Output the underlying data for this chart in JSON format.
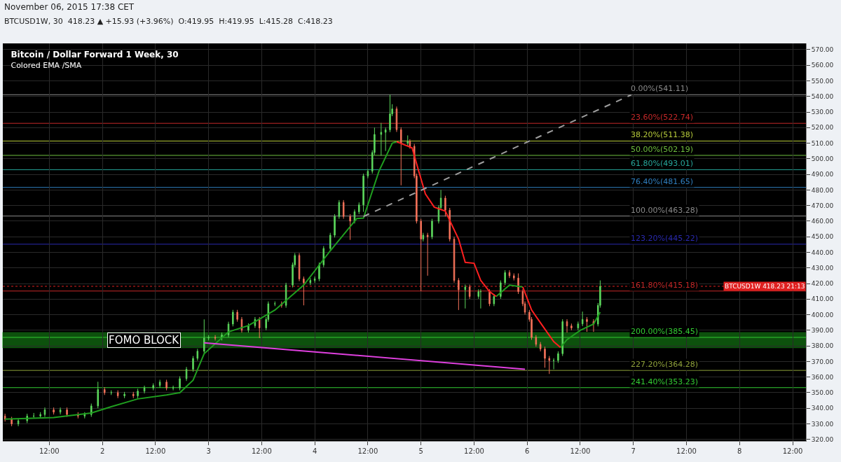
{
  "chart_data": {
    "type": "candlestick",
    "title": "Bitcoin / Dollar Forward 1 Week, 30",
    "subtitle": "Colored EMA /SMA",
    "annotations": [
      "November 06, 2015 17:38 CET",
      "BTCUSD1W, 30  418.23 ▲ +15.93 (+3.96%)  O:419.95  H:419.95  L:415.28  C:418.23"
    ],
    "x": [
      "2015-11-01T02:00",
      "2015-11-01T03:30",
      "2015-11-01T05:00",
      "2015-11-01T07:00",
      "2015-11-01T08:30",
      "2015-11-01T10:00",
      "2015-11-01T11:00",
      "2015-11-01T13:00",
      "2015-11-01T14:30",
      "2015-11-01T16:00",
      "2015-11-01T18:30",
      "2015-11-01T20:00",
      "2015-11-01T21:30",
      "2015-11-01T23:00",
      "2015-11-02T00:30",
      "2015-11-02T02:00",
      "2015-11-02T03:30",
      "2015-11-02T05:00",
      "2015-11-02T07:00",
      "2015-11-02T08:00",
      "2015-11-02T09:30",
      "2015-11-02T11:30",
      "2015-11-02T13:00",
      "2015-11-02T14:30",
      "2015-11-02T16:00",
      "2015-11-02T17:30",
      "2015-11-02T19:00",
      "2015-11-02T20:30",
      "2015-11-02T21:30",
      "2015-11-02T23:00",
      "2015-11-03T00:00",
      "2015-11-03T01:30",
      "2015-11-03T03:00",
      "2015-11-03T04:30",
      "2015-11-03T05:30",
      "2015-11-03T06:30",
      "2015-11-03T07:30",
      "2015-11-03T09:00",
      "2015-11-03T10:30",
      "2015-11-03T11:30",
      "2015-11-03T13:00",
      "2015-11-03T13:30",
      "2015-11-03T15:00",
      "2015-11-03T16:30",
      "2015-11-03T17:30",
      "2015-11-03T19:00",
      "2015-11-03T19:30",
      "2015-11-03T20:30",
      "2015-11-03T21:30",
      "2015-11-03T23:00",
      "2015-11-04T00:00",
      "2015-11-04T01:00",
      "2015-11-04T02:00",
      "2015-11-04T03:30",
      "2015-11-04T04:30",
      "2015-11-04T05:30",
      "2015-11-04T06:30",
      "2015-11-04T08:00",
      "2015-11-04T09:00",
      "2015-11-04T10:00",
      "2015-11-04T11:00",
      "2015-11-04T12:00",
      "2015-11-04T13:00",
      "2015-11-04T13:30",
      "2015-11-04T15:00",
      "2015-11-04T16:00",
      "2015-11-04T17:00",
      "2015-11-04T17:30",
      "2015-11-04T18:30",
      "2015-11-04T19:30",
      "2015-11-04T21:00",
      "2015-11-04T21:30",
      "2015-11-04T22:30",
      "2015-11-04T23:00",
      "2015-11-05T00:00",
      "2015-11-05T00:30",
      "2015-11-05T01:30",
      "2015-11-05T02:30",
      "2015-11-05T04:00",
      "2015-11-05T04:30",
      "2015-11-05T05:30",
      "2015-11-05T06:30",
      "2015-11-05T07:30",
      "2015-11-05T08:30",
      "2015-11-05T10:00",
      "2015-11-05T11:00",
      "2015-11-05T13:00",
      "2015-11-05T13:30",
      "2015-11-05T15:30",
      "2015-11-05T16:30",
      "2015-11-05T18:00",
      "2015-11-05T19:00",
      "2015-11-05T20:00",
      "2015-11-05T21:00",
      "2015-11-05T22:00",
      "2015-11-05T23:00",
      "2015-11-05T23:30",
      "2015-11-06T00:30",
      "2015-11-06T01:00",
      "2015-11-06T02:00",
      "2015-11-06T03:00",
      "2015-11-06T04:00",
      "2015-11-06T05:00",
      "2015-11-06T06:00",
      "2015-11-06T07:00",
      "2015-11-06T08:00",
      "2015-11-06T09:00",
      "2015-11-06T10:00",
      "2015-11-06T11:30",
      "2015-11-06T12:30",
      "2015-11-06T13:30",
      "2015-11-06T15:00",
      "2015-11-06T16:00",
      "2015-11-06T16:30"
    ],
    "ohlc": [
      [
        335,
        336.5,
        331.5,
        333
      ],
      [
        333,
        334.5,
        328.5,
        330
      ],
      [
        330,
        333.5,
        328.5,
        332
      ],
      [
        332,
        336.5,
        330.5,
        335
      ],
      [
        335,
        337,
        333.5,
        335
      ],
      [
        335,
        337.5,
        333.5,
        336
      ],
      [
        336,
        340.5,
        334.5,
        339
      ],
      [
        339,
        340.5,
        336,
        337.5
      ],
      [
        337.5,
        340.5,
        336,
        339
      ],
      [
        339,
        340.5,
        334.5,
        336
      ],
      [
        336,
        337.5,
        333.5,
        335
      ],
      [
        335,
        337.5,
        333.5,
        336
      ],
      [
        336,
        343,
        334.5,
        341.5
      ],
      [
        341.5,
        357,
        340,
        352
      ],
      [
        352,
        353.5,
        348.5,
        350
      ],
      [
        350,
        351.5,
        348.5,
        350
      ],
      [
        350,
        351.5,
        346.5,
        348
      ],
      [
        348,
        350.5,
        346.5,
        349
      ],
      [
        349,
        350.5,
        346.5,
        348
      ],
      [
        348,
        352.5,
        346.5,
        351
      ],
      [
        351,
        354.5,
        349.5,
        353
      ],
      [
        353,
        356,
        351.5,
        354.6
      ],
      [
        354.6,
        358.3,
        353.1,
        356.8
      ],
      [
        356.8,
        358.3,
        351.5,
        353
      ],
      [
        353,
        354.5,
        351.5,
        353
      ],
      [
        353,
        360.5,
        351.5,
        359
      ],
      [
        359,
        366.5,
        357.5,
        365
      ],
      [
        365,
        373.5,
        363.5,
        372
      ],
      [
        372,
        378.1,
        370.5,
        376.6
      ],
      [
        376.6,
        397,
        375.1,
        385
      ],
      [
        385,
        386.9,
        383.5,
        385.4
      ],
      [
        385.4,
        386.9,
        383.5,
        385
      ],
      [
        385,
        388.5,
        383.5,
        387
      ],
      [
        387,
        395.5,
        385.5,
        394
      ],
      [
        394,
        403.1,
        392.5,
        401.6
      ],
      [
        401.6,
        403.1,
        395.5,
        397
      ],
      [
        397,
        398.5,
        388.5,
        390
      ],
      [
        390,
        394.5,
        388.5,
        393
      ],
      [
        393,
        398.5,
        391.5,
        397
      ],
      [
        397,
        398.5,
        385,
        391.5
      ],
      [
        391.5,
        398.5,
        390,
        397
      ],
      [
        397,
        408.5,
        395.5,
        407
      ],
      [
        407,
        408.5,
        405.5,
        407
      ],
      [
        407,
        408.5,
        404.5,
        406
      ],
      [
        406,
        420.5,
        404.5,
        419
      ],
      [
        419,
        433.5,
        417.5,
        432
      ],
      [
        432,
        439.5,
        430.5,
        438
      ],
      [
        438,
        439.5,
        421.5,
        423
      ],
      [
        423,
        424.5,
        406,
        420.5
      ],
      [
        420.5,
        423.5,
        419,
        422
      ],
      [
        422,
        424.5,
        420.5,
        423
      ],
      [
        423,
        433.5,
        421.5,
        432
      ],
      [
        432,
        444,
        430.5,
        442.5
      ],
      [
        442.5,
        452.5,
        441,
        451
      ],
      [
        451,
        464.5,
        449.5,
        463
      ],
      [
        463,
        473.5,
        461.5,
        472
      ],
      [
        472,
        473.5,
        461.5,
        463
      ],
      [
        463,
        464.5,
        448,
        460
      ],
      [
        460,
        467.5,
        458.5,
        466
      ],
      [
        466,
        472,
        464.5,
        470.4
      ],
      [
        470.4,
        490.5,
        466,
        489
      ],
      [
        489,
        493.5,
        487.5,
        492
      ],
      [
        492,
        505.5,
        490.5,
        504
      ],
      [
        504,
        520,
        502.5,
        515.6
      ],
      [
        515.6,
        523,
        502,
        517
      ],
      [
        517,
        520.1,
        505,
        518.6
      ],
      [
        518.6,
        541.11,
        517.1,
        528.8
      ],
      [
        528.8,
        535,
        527.3,
        532
      ],
      [
        532,
        533.5,
        517.2,
        518.7
      ],
      [
        518.7,
        520.2,
        483,
        510
      ],
      [
        510,
        515,
        508.5,
        511
      ],
      [
        511,
        512.5,
        506.5,
        508
      ],
      [
        508,
        509.5,
        487.5,
        489
      ],
      [
        489,
        490.5,
        458.5,
        460
      ],
      [
        460,
        461.5,
        415,
        448.5
      ],
      [
        448.5,
        452.5,
        447,
        451
      ],
      [
        451,
        452.5,
        425,
        450
      ],
      [
        450,
        461.5,
        448.5,
        460
      ],
      [
        460,
        470.2,
        458.5,
        468.7
      ],
      [
        468.7,
        480,
        467.2,
        474.8
      ],
      [
        474.8,
        476.3,
        463,
        467
      ],
      [
        467,
        468.5,
        447,
        448.5
      ],
      [
        448.5,
        450,
        420.5,
        422
      ],
      [
        422,
        423.5,
        403,
        416
      ],
      [
        416,
        419.3,
        404,
        417.8
      ],
      [
        417.8,
        419.3,
        410.2,
        411.7
      ],
      [
        411.7,
        416.3,
        410.2,
        414.8
      ],
      [
        414.8,
        416.3,
        404,
        414.8
      ],
      [
        414.8,
        416.3,
        405.5,
        407
      ],
      [
        407,
        413.2,
        405.5,
        411.7
      ],
      [
        411.7,
        422,
        410.2,
        420.5
      ],
      [
        420.5,
        428.5,
        419,
        427
      ],
      [
        427,
        428.5,
        423.5,
        425
      ],
      [
        425,
        426.5,
        422,
        423.5
      ],
      [
        423.5,
        426.5,
        413.3,
        414.8
      ],
      [
        414.8,
        416.3,
        405.5,
        407
      ],
      [
        407,
        408.5,
        400.1,
        401.6
      ],
      [
        401.6,
        403.1,
        395.5,
        397
      ],
      [
        397,
        398.5,
        383.9,
        385.4
      ],
      [
        385.4,
        386.9,
        379.5,
        381
      ],
      [
        381,
        382.5,
        376.5,
        378
      ],
      [
        378,
        379.5,
        366,
        372
      ],
      [
        372,
        373.5,
        362,
        370.6
      ],
      [
        370.6,
        372.1,
        365,
        370.6
      ],
      [
        370.6,
        376.5,
        369.1,
        375
      ],
      [
        375,
        397.1,
        373.5,
        395.6
      ],
      [
        395.6,
        397.1,
        388.5,
        392.8
      ],
      [
        392.8,
        394.3,
        390,
        391.5
      ],
      [
        391.5,
        395.6,
        390,
        394.1
      ],
      [
        394.1,
        402,
        392.6,
        397
      ],
      [
        397,
        398.5,
        389,
        395.6
      ],
      [
        395.6,
        397.1,
        389,
        394
      ],
      [
        394,
        407.5,
        392.5,
        406
      ],
      [
        406,
        422,
        404.5,
        418.23
      ]
    ],
    "colors": [
      "#f4725a",
      "#f4725a",
      "#5cd65c",
      "#5cd65c",
      "#5cd65c",
      "#5cd65c",
      "#5cd65c",
      "#f4725a",
      "#5cd65c",
      "#f4725a",
      "#f4725a",
      "#5cd65c",
      "#5cd65c",
      "#5cd65c",
      "#f4725a",
      "#5cd65c",
      "#f4725a",
      "#5cd65c",
      "#f4725a",
      "#5cd65c",
      "#5cd65c",
      "#5cd65c",
      "#5cd65c",
      "#f4725a",
      "#5cd65c",
      "#5cd65c",
      "#5cd65c",
      "#5cd65c",
      "#5cd65c",
      "#5cd65c",
      "#5cd65c",
      "#f4725a",
      "#5cd65c",
      "#5cd65c",
      "#5cd65c",
      "#f4725a",
      "#f4725a",
      "#5cd65c",
      "#5cd65c",
      "#f4725a",
      "#5cd65c",
      "#5cd65c",
      "#5cd65c",
      "#f4725a",
      "#5cd65c",
      "#5cd65c",
      "#5cd65c",
      "#f4725a",
      "#f4725a",
      "#5cd65c",
      "#5cd65c",
      "#5cd65c",
      "#5cd65c",
      "#5cd65c",
      "#5cd65c",
      "#5cd65c",
      "#f4725a",
      "#f4725a",
      "#5cd65c",
      "#5cd65c",
      "#5cd65c",
      "#5cd65c",
      "#5cd65c",
      "#5cd65c",
      "#5cd65c",
      "#5cd65c",
      "#5cd65c",
      "#5cd65c",
      "#f4725a",
      "#f4725a",
      "#5cd65c",
      "#f4725a",
      "#f4725a",
      "#f4725a",
      "#f4725a",
      "#5cd65c",
      "#f4725a",
      "#5cd65c",
      "#5cd65c",
      "#5cd65c",
      "#f4725a",
      "#f4725a",
      "#f4725a",
      "#f4725a",
      "#5cd65c",
      "#f4725a",
      "#5cd65c",
      "#5cd65c",
      "#f4725a",
      "#5cd65c",
      "#5cd65c",
      "#5cd65c",
      "#f4725a",
      "#f4725a",
      "#f4725a",
      "#f4725a",
      "#f4725a",
      "#f4725a",
      "#f4725a",
      "#f4725a",
      "#f4725a",
      "#f4725a",
      "#f4725a",
      "#5cd65c",
      "#5cd65c",
      "#5cd65c",
      "#f4725a",
      "#f4725a",
      "#5cd65c",
      "#5cd65c",
      "#f4725a",
      "#f4725a",
      "#5cd65c",
      "#5cd65c"
    ],
    "series": [
      {
        "type": "line",
        "color": "#1f9e1f",
        "x": [
          "2015-11-01T02:00",
          "2015-11-01T13:00",
          "2015-11-01T21:30",
          "2015-11-02T02:00",
          "2015-11-02T08:00",
          "2015-11-02T14:30",
          "2015-11-02T17:30",
          "2015-11-02T20:30",
          "2015-11-02T23:00",
          "2015-11-03T04:30",
          "2015-11-03T09:00",
          "2015-11-03T15:00",
          "2015-11-03T21:30",
          "2015-11-04T03:30",
          "2015-11-04T09:30",
          "2015-11-04T11:00",
          "2015-11-04T14:30",
          "2015-11-04T17:30",
          "2015-11-04T18:30",
          "2015-11-05T04:00",
          "2015-11-05T17:00",
          "2015-11-05T20:00",
          "2015-11-05T23:00",
          "2015-11-06T05:00",
          "2015-11-06T07:30",
          "2015-11-06T09:00",
          "2015-11-06T12:00",
          "2015-11-06T15:00",
          "2015-11-06T16:30"
        ],
        "values": [
          333,
          334,
          337,
          341,
          346,
          348.5,
          350,
          358,
          375,
          389,
          393,
          403,
          419,
          441,
          461.7,
          462,
          492,
          510,
          511,
          null,
          411.7,
          419,
          417.8,
          null,
          379,
          384,
          390,
          394,
          401.6
        ]
      },
      {
        "type": "line",
        "color": "#ff2020",
        "x": [
          "2015-11-04T18:30",
          "2015-11-04T22:00",
          "2015-11-04T23:30",
          "2015-11-05T01:00",
          "2015-11-05T03:00",
          "2015-11-05T05:30",
          "2015-11-05T08:30",
          "2015-11-05T10:00",
          "2015-11-05T12:00",
          "2015-11-05T13:30",
          "2015-11-05T15:30",
          "2015-11-05T17:00",
          "2015-11-05T20:00",
          "2015-11-05T23:00",
          "2015-11-06T01:00",
          "2015-11-06T03:30",
          "2015-11-06T06:00",
          "2015-11-06T07:30"
        ],
        "values": [
          511,
          507,
          492,
          477.5,
          469,
          466.5,
          448.5,
          433.6,
          433,
          422,
          414.8,
          411.7,
          null,
          417.8,
          403,
          392.8,
          382.7,
          379
        ]
      },
      {
        "type": "line",
        "color": "#9e9e9e",
        "line_style": "dashed",
        "x": [
          "2015-11-04T11:00",
          "2015-11-06T23:30"
        ],
        "values": [
          463,
          541
        ]
      },
      {
        "type": "line",
        "color": "#e040e0",
        "x": [
          "2015-11-02T23:00",
          "2015-11-05T23:30"
        ],
        "values": [
          382,
          365
        ]
      }
    ],
    "ref_lines": [
      {
        "axis": "y",
        "value": 541.11,
        "label": "0.00%(541.11)",
        "color": "#8a8a8a"
      },
      {
        "axis": "y",
        "value": 522.74,
        "label": "23.60%(522.74)",
        "color": "#c62828"
      },
      {
        "axis": "y",
        "value": 511.38,
        "label": "38.20%(511.38)",
        "color": "#b5c93a"
      },
      {
        "axis": "y",
        "value": 502.19,
        "label": "50.00%(502.19)",
        "color": "#6fbf3f"
      },
      {
        "axis": "y",
        "value": 493.01,
        "label": "61.80%(493.01)",
        "color": "#26a69a"
      },
      {
        "axis": "y",
        "value": 481.65,
        "label": "76.40%(481.65)",
        "color": "#2f7fc0"
      },
      {
        "axis": "y",
        "value": 463.28,
        "label": "100.00%(463.28)",
        "color": "#8a8a8a"
      },
      {
        "axis": "y",
        "value": 445.22,
        "label": "123.20%(445.22)",
        "color": "#2a2ab0"
      },
      {
        "axis": "y",
        "value": 415.18,
        "label": "161.80%(415.18)",
        "color": "#c62828"
      },
      {
        "axis": "y",
        "value": 385.45,
        "label": "200.00%(385.45)",
        "color": "#33cc33"
      },
      {
        "axis": "y",
        "value": 364.28,
        "label": "227.20%(364.28)",
        "color": "#8fa13a"
      },
      {
        "axis": "y",
        "value": 353.23,
        "label": "241.40%(353.23)",
        "color": "#33cc33"
      },
      {
        "axis": "y",
        "value": 418.23,
        "label": "BTCUSD1W 418.23 21:13",
        "color": "#e02020",
        "line_style": "dotted"
      }
    ],
    "bands": [
      {
        "axis": "y",
        "from": 379,
        "to": 388.4,
        "label": "FOMO BLOCK",
        "color": "#1db31d"
      }
    ],
    "xlim": [
      "2015-11-01T01:30",
      "2015-11-08T15:00"
    ],
    "xticks": [
      {
        "value": "2015-11-01T12:00",
        "label": "12:00"
      },
      {
        "value": "2015-11-02",
        "label": "2"
      },
      {
        "value": "2015-11-02T12:00",
        "label": "12:00"
      },
      {
        "value": "2015-11-03",
        "label": "3"
      },
      {
        "value": "2015-11-03T12:00",
        "label": "12:00"
      },
      {
        "value": "2015-11-04",
        "label": "4"
      },
      {
        "value": "2015-11-04T12:00",
        "label": "12:00"
      },
      {
        "value": "2015-11-05",
        "label": "5"
      },
      {
        "value": "2015-11-05T12:00",
        "label": "12:00"
      },
      {
        "value": "2015-11-06",
        "label": "6"
      },
      {
        "value": "2015-11-06T12:00",
        "label": "12:00"
      },
      {
        "value": "2015-11-07",
        "label": "7"
      },
      {
        "value": "2015-11-07T12:00",
        "label": "12:00"
      },
      {
        "value": "2015-11-08",
        "label": "8"
      },
      {
        "value": "2015-11-08T12:00",
        "label": "12:00"
      }
    ],
    "ylim": [
      319,
      574
    ],
    "yticks": [
      {
        "value": 320,
        "label": "320.00"
      },
      {
        "value": 330,
        "label": "330.00"
      },
      {
        "value": 340,
        "label": "340.00"
      },
      {
        "value": 350,
        "label": "350.00"
      },
      {
        "value": 360,
        "label": "360.00"
      },
      {
        "value": 370,
        "label": "370.00"
      },
      {
        "value": 380,
        "label": "380.00"
      },
      {
        "value": 390,
        "label": "390.00"
      },
      {
        "value": 400,
        "label": "400.00"
      },
      {
        "value": 410,
        "label": "410.00"
      },
      {
        "value": 420,
        "label": "420.00"
      },
      {
        "value": 430,
        "label": "430.00"
      },
      {
        "value": 440,
        "label": "440.00"
      },
      {
        "value": 450,
        "label": "450.00"
      },
      {
        "value": 460,
        "label": "460.00"
      },
      {
        "value": 470,
        "label": "470.00"
      },
      {
        "value": 480,
        "label": "480.00"
      },
      {
        "value": 490,
        "label": "490.00"
      },
      {
        "value": 500,
        "label": "500.00"
      },
      {
        "value": 510,
        "label": "510.00"
      },
      {
        "value": 520,
        "label": "520.00"
      },
      {
        "value": 530,
        "label": "530.00"
      },
      {
        "value": 540,
        "label": "540.00"
      },
      {
        "value": 550,
        "label": "550.00"
      },
      {
        "value": 560,
        "label": "560.00"
      },
      {
        "value": 570,
        "label": "570.00"
      }
    ],
    "grid": true
  }
}
